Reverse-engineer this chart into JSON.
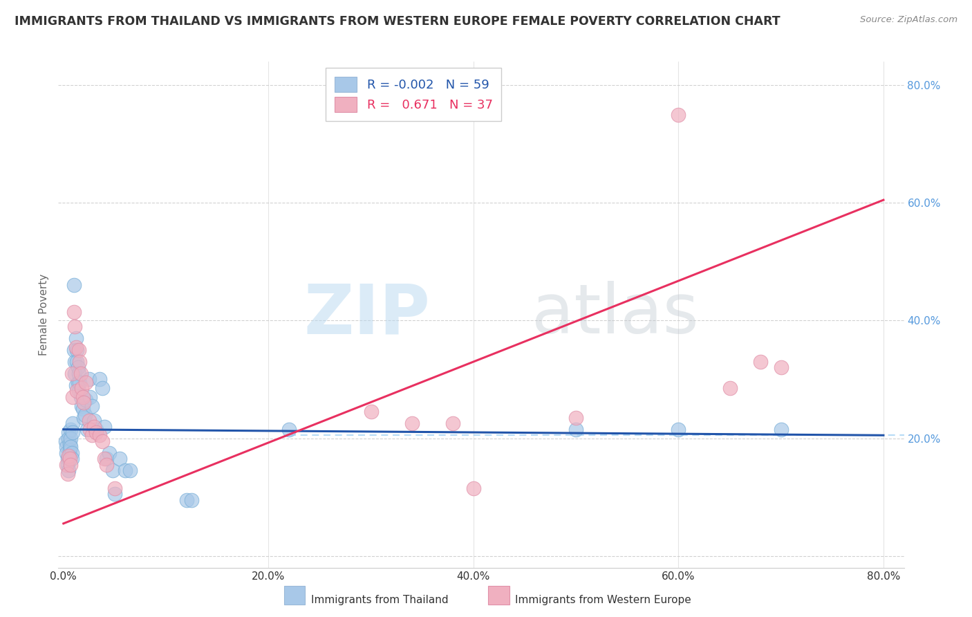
{
  "title": "IMMIGRANTS FROM THAILAND VS IMMIGRANTS FROM WESTERN EUROPE FEMALE POVERTY CORRELATION CHART",
  "source": "Source: ZipAtlas.com",
  "ylabel": "Female Poverty",
  "xlim": [
    -0.005,
    0.82
  ],
  "ylim": [
    -0.02,
    0.84
  ],
  "xticks": [
    0.0,
    0.2,
    0.4,
    0.6,
    0.8
  ],
  "yticks": [
    0.0,
    0.2,
    0.4,
    0.6,
    0.8
  ],
  "xticklabels": [
    "0.0%",
    "20.0%",
    "40.0%",
    "60.0%",
    "80.0%"
  ],
  "yticklabels_right": [
    "80.0%",
    "60.0%",
    "40.0%",
    "20.0%"
  ],
  "background_color": "#ffffff",
  "legend_R1": "-0.002",
  "legend_N1": "59",
  "legend_R2": "0.671",
  "legend_N2": "37",
  "blue_color": "#a8c8e8",
  "pink_color": "#f0b0c0",
  "blue_line_color": "#2255aa",
  "pink_line_color": "#e83060",
  "blue_dash_color": "#90c8f0",
  "grid_color": "#cccccc",
  "title_color": "#333333",
  "right_tick_color": "#5599dd",
  "blue_scatter": [
    [
      0.002,
      0.195
    ],
    [
      0.003,
      0.185
    ],
    [
      0.003,
      0.175
    ],
    [
      0.004,
      0.165
    ],
    [
      0.004,
      0.155
    ],
    [
      0.005,
      0.145
    ],
    [
      0.005,
      0.21
    ],
    [
      0.005,
      0.2
    ],
    [
      0.006,
      0.19
    ],
    [
      0.006,
      0.18
    ],
    [
      0.006,
      0.17
    ],
    [
      0.007,
      0.215
    ],
    [
      0.007,
      0.2
    ],
    [
      0.007,
      0.185
    ],
    [
      0.008,
      0.175
    ],
    [
      0.008,
      0.165
    ],
    [
      0.009,
      0.225
    ],
    [
      0.009,
      0.21
    ],
    [
      0.01,
      0.46
    ],
    [
      0.01,
      0.35
    ],
    [
      0.011,
      0.33
    ],
    [
      0.011,
      0.31
    ],
    [
      0.012,
      0.37
    ],
    [
      0.012,
      0.29
    ],
    [
      0.013,
      0.35
    ],
    [
      0.013,
      0.33
    ],
    [
      0.014,
      0.32
    ],
    [
      0.014,
      0.295
    ],
    [
      0.015,
      0.31
    ],
    [
      0.015,
      0.28
    ],
    [
      0.016,
      0.295
    ],
    [
      0.017,
      0.27
    ],
    [
      0.018,
      0.255
    ],
    [
      0.019,
      0.25
    ],
    [
      0.02,
      0.235
    ],
    [
      0.021,
      0.24
    ],
    [
      0.022,
      0.265
    ],
    [
      0.023,
      0.215
    ],
    [
      0.025,
      0.3
    ],
    [
      0.026,
      0.27
    ],
    [
      0.028,
      0.255
    ],
    [
      0.03,
      0.23
    ],
    [
      0.032,
      0.215
    ],
    [
      0.035,
      0.3
    ],
    [
      0.038,
      0.285
    ],
    [
      0.04,
      0.22
    ],
    [
      0.042,
      0.165
    ],
    [
      0.045,
      0.175
    ],
    [
      0.048,
      0.145
    ],
    [
      0.05,
      0.105
    ],
    [
      0.055,
      0.165
    ],
    [
      0.06,
      0.145
    ],
    [
      0.065,
      0.145
    ],
    [
      0.12,
      0.095
    ],
    [
      0.125,
      0.095
    ],
    [
      0.22,
      0.215
    ],
    [
      0.5,
      0.215
    ],
    [
      0.6,
      0.215
    ],
    [
      0.7,
      0.215
    ]
  ],
  "pink_scatter": [
    [
      0.003,
      0.155
    ],
    [
      0.004,
      0.14
    ],
    [
      0.005,
      0.17
    ],
    [
      0.006,
      0.165
    ],
    [
      0.007,
      0.155
    ],
    [
      0.008,
      0.31
    ],
    [
      0.009,
      0.27
    ],
    [
      0.01,
      0.415
    ],
    [
      0.011,
      0.39
    ],
    [
      0.012,
      0.355
    ],
    [
      0.013,
      0.28
    ],
    [
      0.015,
      0.35
    ],
    [
      0.016,
      0.33
    ],
    [
      0.017,
      0.31
    ],
    [
      0.018,
      0.285
    ],
    [
      0.019,
      0.27
    ],
    [
      0.02,
      0.26
    ],
    [
      0.022,
      0.295
    ],
    [
      0.025,
      0.23
    ],
    [
      0.026,
      0.215
    ],
    [
      0.028,
      0.205
    ],
    [
      0.03,
      0.22
    ],
    [
      0.032,
      0.21
    ],
    [
      0.035,
      0.205
    ],
    [
      0.038,
      0.195
    ],
    [
      0.04,
      0.165
    ],
    [
      0.042,
      0.155
    ],
    [
      0.05,
      0.115
    ],
    [
      0.3,
      0.245
    ],
    [
      0.34,
      0.225
    ],
    [
      0.38,
      0.225
    ],
    [
      0.4,
      0.115
    ],
    [
      0.5,
      0.235
    ],
    [
      0.6,
      0.75
    ],
    [
      0.65,
      0.285
    ],
    [
      0.68,
      0.33
    ],
    [
      0.7,
      0.32
    ]
  ],
  "blue_line": [
    [
      0.0,
      0.215
    ],
    [
      0.8,
      0.205
    ]
  ],
  "pink_line": [
    [
      0.0,
      0.055
    ],
    [
      0.8,
      0.605
    ]
  ],
  "pink_dashed_line": [
    [
      0.22,
      0.205
    ],
    [
      0.82,
      0.205
    ]
  ]
}
